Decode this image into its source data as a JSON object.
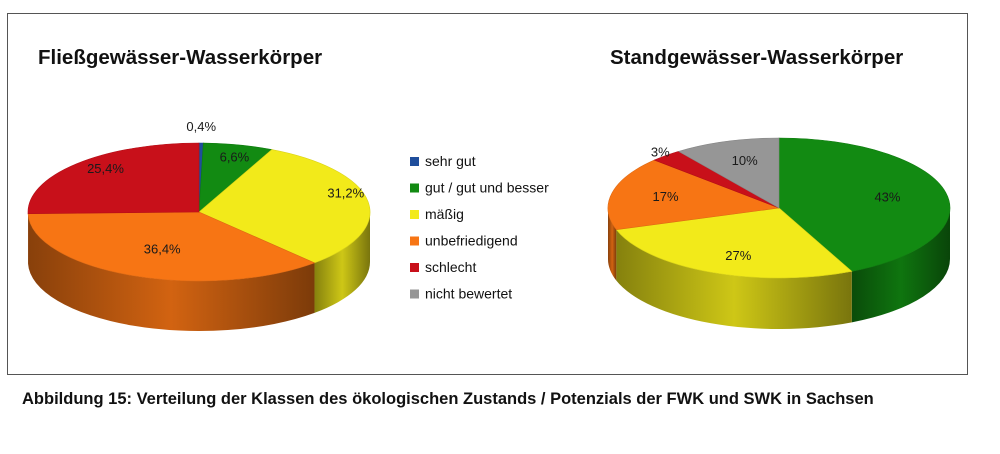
{
  "chart_data": [
    {
      "type": "pie",
      "title": "Fließgewässer-Wasserkörper",
      "slices": [
        {
          "category": "sehr gut",
          "value": 0.4,
          "label": "0,4%"
        },
        {
          "category": "gut / gut und besser",
          "value": 6.6,
          "label": "6,6%"
        },
        {
          "category": "mäßig",
          "value": 31.2,
          "label": "31,2%"
        },
        {
          "category": "unbefriedigend",
          "value": 36.4,
          "label": "36,4%"
        },
        {
          "category": "schlecht",
          "value": 25.4,
          "label": "25,4%"
        }
      ]
    },
    {
      "type": "pie",
      "title": "Standgewässer-Wasserkörper",
      "slices": [
        {
          "category": "gut / gut und besser",
          "value": 43,
          "label": "43%"
        },
        {
          "category": "mäßig",
          "value": 27,
          "label": "27%"
        },
        {
          "category": "unbefriedigend",
          "value": 17,
          "label": "17%"
        },
        {
          "category": "schlecht",
          "value": 3,
          "label": "3%"
        },
        {
          "category": "nicht bewertet",
          "value": 10,
          "label": "10%"
        }
      ]
    }
  ],
  "legend": [
    {
      "label": "sehr gut",
      "color": "#1f4e9c"
    },
    {
      "label": "gut / gut und besser",
      "color": "#128a12"
    },
    {
      "label": "mäßig",
      "color": "#f2ea1a"
    },
    {
      "label": "unbefriedigend",
      "color": "#f77514"
    },
    {
      "label": "schlecht",
      "color": "#c8101a"
    },
    {
      "label": "nicht bewertet",
      "color": "#969696"
    }
  ],
  "caption": "Abbildung 15: Verteilung der Klassen des ökologischen Zustands / Potenzials der FWK und SWK in Sachsen"
}
